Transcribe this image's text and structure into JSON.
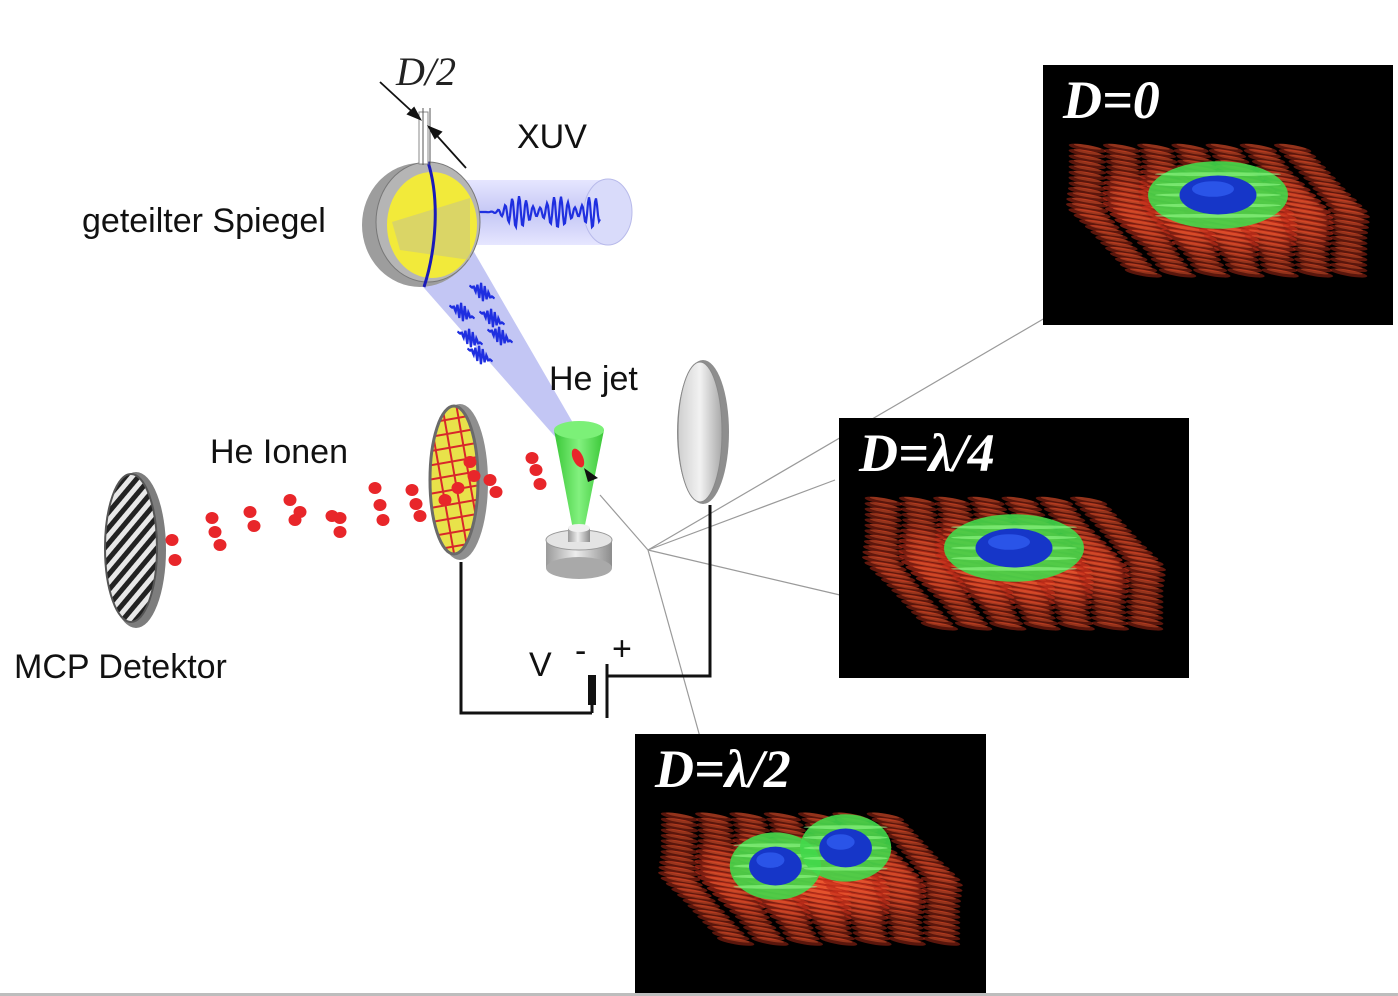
{
  "labels": {
    "split_distance": "D/2",
    "xuv": "XUV",
    "mirror": "geteilter Spiegel",
    "he_jet": "He jet",
    "he_ions": "He Ionen",
    "detector": "MCP Detektor",
    "voltage": "V",
    "minus": "-",
    "plus": "+"
  },
  "panels": [
    {
      "title": "D=0",
      "lobes": 1
    },
    {
      "title": "D=λ/4",
      "lobes": 1
    },
    {
      "title": "D=λ/2",
      "lobes": 2
    }
  ],
  "colors": {
    "mirror_yellow": "#f2ea3a",
    "beam_blue": "#1f2fe0",
    "ion_red": "#e8262a",
    "jet_green": "#3ee03a",
    "spectrum_red": "#e0371f",
    "spectrum_green": "#47e04a",
    "spectrum_blue": "#1636c8"
  }
}
